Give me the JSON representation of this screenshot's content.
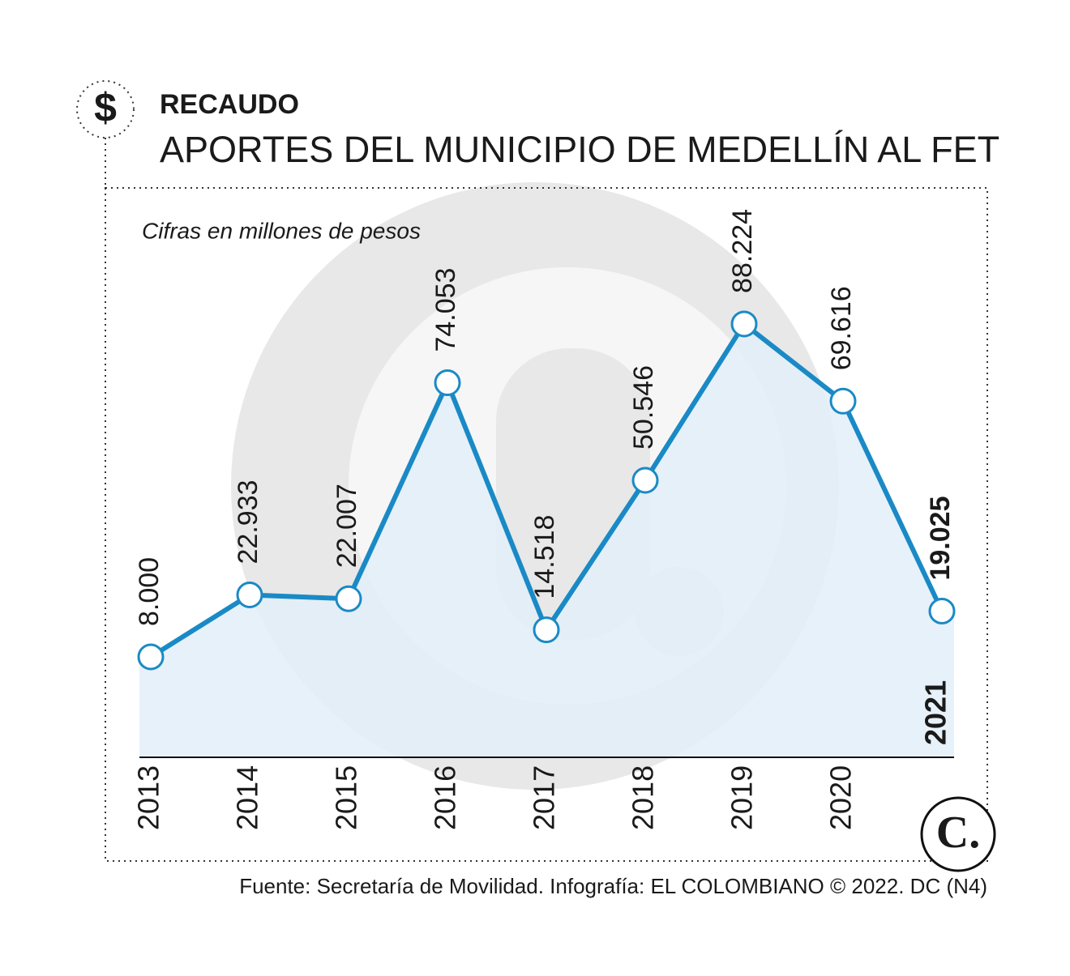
{
  "header": {
    "title": "RECAUDO",
    "subtitle": "APORTES DEL MUNICIPIO DE MEDELLÍN AL FET",
    "icon": "$"
  },
  "chart_data": {
    "type": "line",
    "subtitle": "Cifras en millones de pesos",
    "categories": [
      "2013",
      "2014",
      "2015",
      "2016",
      "2017",
      "2018",
      "2019",
      "2020",
      "2021"
    ],
    "series": [
      {
        "color": "#1a8ac6",
        "area_color": "#e3eff9",
        "values": [
          8000,
          22933,
          22007,
          74053,
          14518,
          50546,
          88224,
          69616,
          19025
        ],
        "value_labels": [
          "8.000",
          "22.933",
          "22.007",
          "74.053",
          "14.518",
          "50.546",
          "88.224",
          "69.616",
          "19.025"
        ]
      }
    ],
    "ylim": [
      -16200,
      121000
    ]
  },
  "footer": {
    "source": "Fuente: Secretaría de Movilidad. Infografía: EL COLOMBIANO © 2022. DC (N4)",
    "logo": "C."
  }
}
